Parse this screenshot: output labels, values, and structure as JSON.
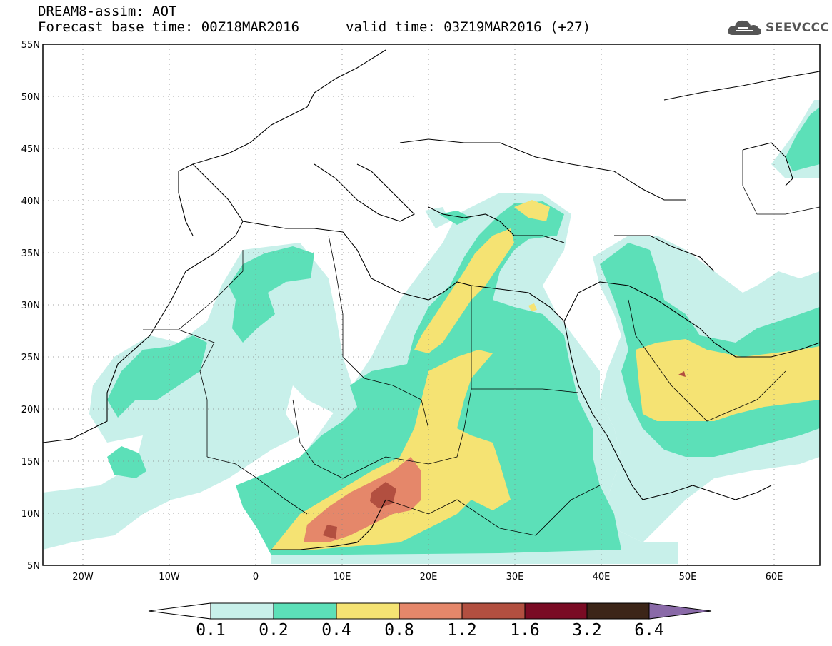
{
  "header": {
    "line1": "DREAM8-assim: AOT",
    "line2": "Forecast base time: 00Z18MAR2016",
    "valid": "valid time: 03Z19MAR2016 (+27)"
  },
  "logo": {
    "text": "SEEVCCC",
    "icon": "cloud-icon"
  },
  "map": {
    "lon_range": [
      -25,
      65
    ],
    "lat_range": [
      5,
      55
    ],
    "lat_labels": [
      "55N",
      "50N",
      "45N",
      "40N",
      "35N",
      "30N",
      "25N",
      "20N",
      "15N",
      "10N",
      "5N"
    ],
    "lon_labels": [
      "20W",
      "10W",
      "0",
      "10E",
      "20E",
      "30E",
      "40E",
      "50E",
      "60E"
    ],
    "grid": "dotted"
  },
  "colorbar": {
    "levels": [
      "0.1",
      "0.2",
      "0.4",
      "0.8",
      "1.2",
      "1.6",
      "3.2",
      "6.4"
    ],
    "colors": [
      "#ffffff",
      "#c8f0ea",
      "#5ce0b8",
      "#f5e373",
      "#e5876a",
      "#b24f40",
      "#7a0b24",
      "#3c2518",
      "#8a6aa8"
    ]
  },
  "chart_data": {
    "type": "heatmap",
    "title": "DREAM8-assim: AOT",
    "variable": "AOT",
    "base_time": "00Z18MAR2016",
    "valid_time": "03Z19MAR2016 (+27)",
    "xlim": [
      -25,
      65
    ],
    "ylim": [
      5,
      55
    ],
    "bins": [
      0.1,
      0.2,
      0.4,
      0.8,
      1.2,
      1.6,
      3.2,
      6.4
    ]
  }
}
